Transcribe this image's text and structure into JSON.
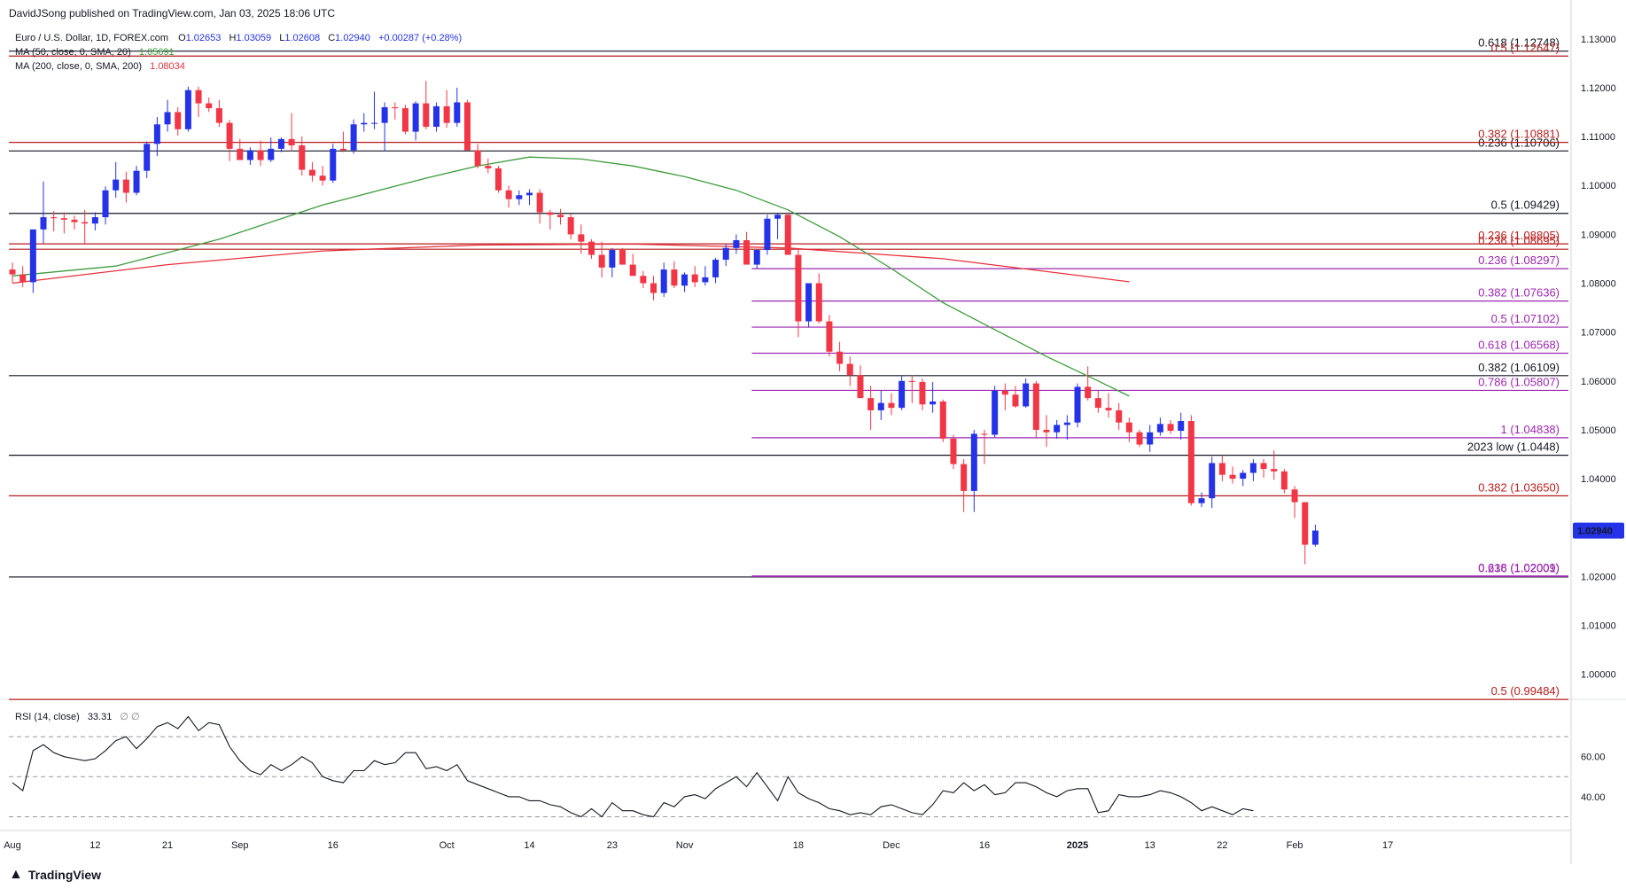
{
  "header": {
    "published_text": "DavidJSong published on TradingView.com, Jan 03, 2025 18:06 UTC"
  },
  "legend": {
    "symbol": "Euro / U.S. Dollar, 1D, FOREX.com",
    "o_label": "O",
    "o": "1.02653",
    "h_label": "H",
    "h": "1.03059",
    "l_label": "L",
    "l": "1.02608",
    "c_label": "C",
    "c": "1.02940",
    "change": "+0.00287 (+0.28%)",
    "ma50_label": "MA (50, close, 0, SMA, 20)",
    "ma50_value": "1.05691",
    "ma200_label": "MA (200, close, 0, SMA, 200)",
    "ma200_value": "1.08034",
    "rsi_label": "RSI (14, close)",
    "rsi_value": "33.31",
    "rsi_extra": "∅  ∅"
  },
  "colors": {
    "up": "#2432e8",
    "down": "#f23645",
    "ma50": "#3c9c3c",
    "ma200": "#e8303a",
    "black_level": "#131722",
    "purple_level": "#9c27b0",
    "red_level": "#b71c1c"
  },
  "price_axis": {
    "ticks": [
      "1.13000",
      "1.12000",
      "1.11000",
      "1.10000",
      "1.09000",
      "1.08000",
      "1.07000",
      "1.06000",
      "1.05000",
      "1.04000",
      "1.03000",
      "1.02000",
      "1.01000",
      "1.00000"
    ],
    "tick_values": [
      1.13,
      1.12,
      1.11,
      1.1,
      1.09,
      1.08,
      1.07,
      1.06,
      1.05,
      1.04,
      1.03,
      1.02,
      1.01,
      1.0
    ],
    "current_price": "1.02940",
    "ylim": [
      0.9965,
      1.1325
    ]
  },
  "rsi_axis": {
    "ticks": [
      "60.00",
      "40.00"
    ],
    "tick_values": [
      60,
      40
    ]
  },
  "time_axis": {
    "labels": [
      "Aug",
      "12",
      "21",
      "Sep",
      "16",
      "Oct",
      "14",
      "23",
      "Nov",
      "18",
      "Dec",
      "16",
      "2025",
      "13",
      "22",
      "Feb",
      "17"
    ],
    "label_slots": [
      0,
      8,
      15,
      22,
      31,
      42,
      50,
      58,
      65,
      76,
      85,
      94,
      103,
      110,
      117,
      124,
      133
    ]
  },
  "levels": {
    "black": [
      {
        "value": 1.12748,
        "label": "0.618 (1.12748)"
      },
      {
        "value": 1.10706,
        "label": "0.236 (1.10706)"
      },
      {
        "value": 1.09429,
        "label": "0.5 (1.09429)"
      },
      {
        "value": 1.06109,
        "label": "0.382 (1.06109)"
      },
      {
        "value": 1.0448,
        "label": "2023 low (1.0448)"
      },
      {
        "value": 1.0199,
        "label": ""
      }
    ],
    "red": [
      {
        "value": 1.12647,
        "label": "0.5 (1.12647)"
      },
      {
        "value": 1.10881,
        "label": "0.382 (1.10881)"
      },
      {
        "value": 1.08805,
        "label": "0.236 (1.08805)"
      },
      {
        "value": 1.08695,
        "label": "0.236 (1.08695)"
      },
      {
        "value": 1.0365,
        "label": "0.382 (1.03650)"
      },
      {
        "value": 0.99484,
        "label": "0.5 (0.99484)"
      }
    ],
    "purple": [
      {
        "value": 1.08297,
        "label": "0.236 (1.08297)"
      },
      {
        "value": 1.07636,
        "label": "0.382 (1.07636)"
      },
      {
        "value": 1.07102,
        "label": "0.5 (1.07102)"
      },
      {
        "value": 1.06568,
        "label": "0.618 (1.06568)"
      },
      {
        "value": 1.05807,
        "label": "0.786 (1.05807)"
      },
      {
        "value": 1.04838,
        "label": "1 (1.04838)"
      },
      {
        "value": 1.02009,
        "label": "0.618 (1.02009)"
      },
      {
        "value": 1.02001,
        "label": "0.236 (1.02001)"
      }
    ]
  },
  "chart_data": {
    "type": "candlestick",
    "title": "Euro / U.S. Dollar, 1D, FOREX.com",
    "candles_ohlc": [
      [
        1.0828,
        1.0842,
        1.0801,
        1.0818
      ],
      [
        1.0818,
        1.0835,
        1.0792,
        1.0802
      ],
      [
        1.0802,
        1.091,
        1.078,
        1.091
      ],
      [
        1.091,
        1.1008,
        1.0882,
        1.0935
      ],
      [
        1.0935,
        1.0948,
        1.0906,
        1.0933
      ],
      [
        1.0933,
        1.0945,
        1.0902,
        1.093
      ],
      [
        1.093,
        1.0938,
        1.091,
        1.0925
      ],
      [
        1.0925,
        1.095,
        1.0882,
        1.0922
      ],
      [
        1.0922,
        1.0945,
        1.0908,
        1.0935
      ],
      [
        1.0935,
        1.0998,
        1.092,
        1.099
      ],
      [
        1.099,
        1.1048,
        1.0975,
        1.1012
      ],
      [
        1.1012,
        1.1028,
        1.0965,
        1.0985
      ],
      [
        1.0985,
        1.104,
        1.098,
        1.103
      ],
      [
        1.103,
        1.109,
        1.1015,
        1.1085
      ],
      [
        1.1085,
        1.114,
        1.106,
        1.1125
      ],
      [
        1.1125,
        1.1175,
        1.111,
        1.115
      ],
      [
        1.115,
        1.116,
        1.1102,
        1.1115
      ],
      [
        1.1115,
        1.1202,
        1.111,
        1.1195
      ],
      [
        1.1195,
        1.1202,
        1.114,
        1.1168
      ],
      [
        1.1168,
        1.118,
        1.115,
        1.1158
      ],
      [
        1.1158,
        1.1175,
        1.112,
        1.1128
      ],
      [
        1.1128,
        1.1134,
        1.105,
        1.1075
      ],
      [
        1.1075,
        1.1095,
        1.1055,
        1.1052
      ],
      [
        1.1052,
        1.1078,
        1.1042,
        1.1072
      ],
      [
        1.1072,
        1.1092,
        1.104,
        1.1052
      ],
      [
        1.1052,
        1.1098,
        1.1048,
        1.1075
      ],
      [
        1.1075,
        1.1098,
        1.1068,
        1.1095
      ],
      [
        1.1095,
        1.1148,
        1.107,
        1.1082
      ],
      [
        1.1082,
        1.11,
        1.102,
        1.1032
      ],
      [
        1.1032,
        1.1048,
        1.1008,
        1.102
      ],
      [
        1.102,
        1.104,
        1.1,
        1.101
      ],
      [
        1.101,
        1.1085,
        1.1005,
        1.1075
      ],
      [
        1.1075,
        1.111,
        1.1068,
        1.1072
      ],
      [
        1.1072,
        1.1135,
        1.1065,
        1.1125
      ],
      [
        1.1125,
        1.1148,
        1.111,
        1.1128
      ],
      [
        1.1128,
        1.1192,
        1.1115,
        1.1128
      ],
      [
        1.1128,
        1.117,
        1.107,
        1.116
      ],
      [
        1.116,
        1.117,
        1.1135,
        1.1158
      ],
      [
        1.1158,
        1.1165,
        1.1105,
        1.111
      ],
      [
        1.111,
        1.1172,
        1.1092,
        1.1168
      ],
      [
        1.1168,
        1.1214,
        1.1115,
        1.112
      ],
      [
        1.112,
        1.117,
        1.111,
        1.1162
      ],
      [
        1.1162,
        1.1195,
        1.1118,
        1.1128
      ],
      [
        1.1128,
        1.12,
        1.112,
        1.117
      ],
      [
        1.117,
        1.1175,
        1.1072,
        1.1072
      ],
      [
        1.1072,
        1.1085,
        1.1035,
        1.104
      ],
      [
        1.104,
        1.1055,
        1.1025,
        1.1035
      ],
      [
        1.1035,
        1.104,
        1.0985,
        1.099
      ],
      [
        1.099,
        1.1,
        1.0955,
        1.0972
      ],
      [
        1.0972,
        1.099,
        1.096,
        1.098
      ],
      [
        1.098,
        1.0992,
        1.096,
        1.0985
      ],
      [
        1.0985,
        1.0992,
        1.0922,
        1.0945
      ],
      [
        1.0945,
        1.095,
        1.091,
        1.094
      ],
      [
        1.094,
        1.0952,
        1.092,
        1.0935
      ],
      [
        1.0935,
        1.0942,
        1.089,
        1.09
      ],
      [
        1.09,
        1.092,
        1.086,
        1.0885
      ],
      [
        1.0885,
        1.089,
        1.085,
        1.0858
      ],
      [
        1.0858,
        1.0885,
        1.0812,
        1.0832
      ],
      [
        1.0832,
        1.0872,
        1.0812,
        1.0868
      ],
      [
        1.0868,
        1.0872,
        1.084,
        1.0838
      ],
      [
        1.0838,
        1.086,
        1.0815,
        1.0815
      ],
      [
        1.0815,
        1.0825,
        1.079,
        1.08
      ],
      [
        1.08,
        1.0815,
        1.0765,
        1.078
      ],
      [
        1.078,
        1.0842,
        1.0772,
        1.0828
      ],
      [
        1.0828,
        1.0845,
        1.079,
        1.0795
      ],
      [
        1.0795,
        1.0822,
        1.0782,
        1.0818
      ],
      [
        1.0818,
        1.0835,
        1.0792,
        1.0802
      ],
      [
        1.0802,
        1.0835,
        1.0795,
        1.0812
      ],
      [
        1.0812,
        1.0852,
        1.08,
        1.0848
      ],
      [
        1.0848,
        1.088,
        1.0835,
        1.0872
      ],
      [
        1.0872,
        1.09,
        1.086,
        1.0888
      ],
      [
        1.0888,
        1.0905,
        1.086,
        1.0838
      ],
      [
        1.0838,
        1.087,
        1.083,
        1.0868
      ],
      [
        1.0868,
        1.094,
        1.0858,
        1.0932
      ],
      [
        1.0932,
        1.0942,
        1.089,
        1.094
      ],
      [
        1.094,
        1.0945,
        1.0858,
        1.0858
      ],
      [
        1.0858,
        1.087,
        1.069,
        1.0722
      ],
      [
        1.0722,
        1.08,
        1.071,
        1.08
      ],
      [
        1.08,
        1.082,
        1.0718,
        1.0722
      ],
      [
        1.0722,
        1.0735,
        1.065,
        1.066
      ],
      [
        1.066,
        1.068,
        1.062,
        1.0635
      ],
      [
        1.0635,
        1.065,
        1.059,
        1.0612
      ],
      [
        1.0612,
        1.0632,
        1.0565,
        1.0565
      ],
      [
        1.0565,
        1.059,
        1.05,
        1.054
      ],
      [
        1.054,
        1.058,
        1.052,
        1.0555
      ],
      [
        1.0555,
        1.0575,
        1.053,
        1.0545
      ],
      [
        1.0545,
        1.061,
        1.054,
        1.06
      ],
      [
        1.06,
        1.0612,
        1.0555,
        1.0598
      ],
      [
        1.0598,
        1.0605,
        1.054,
        1.0552
      ],
      [
        1.0552,
        1.0598,
        1.0535,
        1.0558
      ],
      [
        1.0558,
        1.0562,
        1.0475,
        1.0482
      ],
      [
        1.0482,
        1.049,
        1.042,
        1.043
      ],
      [
        1.043,
        1.044,
        1.0332,
        1.0375
      ],
      [
        1.0375,
        1.05,
        1.0332,
        1.0492
      ],
      [
        1.0492,
        1.05,
        1.043,
        1.049
      ],
      [
        1.049,
        1.059,
        1.0485,
        1.058
      ],
      [
        1.058,
        1.0595,
        1.054,
        1.0572
      ],
      [
        1.0572,
        1.059,
        1.0545,
        1.0548
      ],
      [
        1.0548,
        1.0605,
        1.0545,
        1.0595
      ],
      [
        1.0595,
        1.06,
        1.0485,
        1.05
      ],
      [
        1.05,
        1.053,
        1.0465,
        1.0495
      ],
      [
        1.0495,
        1.052,
        1.0482,
        1.051
      ],
      [
        1.051,
        1.053,
        1.048,
        1.0515
      ],
      [
        1.0515,
        1.0595,
        1.0505,
        1.0588
      ],
      [
        1.0588,
        1.063,
        1.056,
        1.0565
      ],
      [
        1.0565,
        1.058,
        1.0535,
        1.0545
      ],
      [
        1.0545,
        1.0575,
        1.0525,
        1.054
      ],
      [
        1.054,
        1.0555,
        1.05,
        1.0515
      ],
      [
        1.0515,
        1.0525,
        1.0475,
        1.0495
      ],
      [
        1.0495,
        1.05,
        1.0465,
        1.047
      ],
      [
        1.047,
        1.051,
        1.0455,
        1.0495
      ],
      [
        1.0495,
        1.0525,
        1.0488,
        1.0512
      ],
      [
        1.0512,
        1.052,
        1.0492,
        1.0498
      ],
      [
        1.0498,
        1.0535,
        1.048,
        1.0518
      ],
      [
        1.0518,
        1.053,
        1.0345,
        1.035
      ],
      [
        1.035,
        1.0372,
        1.0342,
        1.036
      ],
      [
        1.036,
        1.0445,
        1.034,
        1.0432
      ],
      [
        1.0432,
        1.0448,
        1.0395,
        1.0408
      ],
      [
        1.0408,
        1.0425,
        1.039,
        1.04
      ],
      [
        1.04,
        1.0418,
        1.0385,
        1.0412
      ],
      [
        1.0412,
        1.044,
        1.0395,
        1.0432
      ],
      [
        1.0432,
        1.044,
        1.0402,
        1.042
      ],
      [
        1.042,
        1.0458,
        1.0398,
        1.0415
      ],
      [
        1.0415,
        1.042,
        1.037,
        1.0378
      ],
      [
        1.0378,
        1.0385,
        1.032,
        1.0352
      ],
      [
        1.0352,
        1.0352,
        1.0225,
        1.0265
      ],
      [
        1.0265,
        1.0306,
        1.0261,
        1.0294
      ]
    ],
    "ma50": [
      [
        0,
        1.0815
      ],
      [
        10,
        1.0835
      ],
      [
        20,
        1.089
      ],
      [
        30,
        1.096
      ],
      [
        40,
        1.1015
      ],
      [
        45,
        1.104
      ],
      [
        50,
        1.1058
      ],
      [
        55,
        1.1054
      ],
      [
        60,
        1.104
      ],
      [
        65,
        1.1018
      ],
      [
        70,
        1.099
      ],
      [
        75,
        1.095
      ],
      [
        80,
        1.0895
      ],
      [
        85,
        1.083
      ],
      [
        90,
        1.076
      ],
      [
        95,
        1.0705
      ],
      [
        100,
        1.065
      ],
      [
        105,
        1.06
      ],
      [
        108,
        1.0569
      ]
    ],
    "ma200": [
      [
        0,
        1.08
      ],
      [
        15,
        1.0838
      ],
      [
        30,
        1.0866
      ],
      [
        45,
        1.0878
      ],
      [
        60,
        1.088
      ],
      [
        75,
        1.0872
      ],
      [
        90,
        1.085
      ],
      [
        108,
        1.0803
      ]
    ],
    "rsi": [
      47,
      43,
      63,
      66,
      62,
      60,
      59,
      58,
      59,
      63,
      68,
      70,
      64,
      69,
      75,
      77,
      74,
      80,
      73,
      77,
      76,
      65,
      58,
      53,
      51,
      56,
      53,
      56,
      60,
      57,
      50,
      48,
      47,
      53,
      53,
      58,
      56,
      57,
      62,
      62,
      54,
      55,
      53,
      56,
      48,
      46,
      44,
      42,
      40,
      40,
      38,
      38,
      36,
      35,
      32,
      30,
      34,
      30,
      37,
      33,
      33,
      31,
      30,
      37,
      35,
      40,
      41,
      39,
      44,
      47,
      50,
      45,
      52,
      45,
      38,
      50,
      42,
      39,
      37,
      34,
      33,
      31,
      32,
      31,
      35,
      36,
      34,
      32,
      31,
      36,
      43,
      42,
      47,
      43,
      46,
      41,
      42,
      47,
      47,
      45,
      42,
      40,
      43,
      44,
      44,
      32,
      33,
      41,
      40,
      40,
      41,
      43,
      42,
      40,
      37,
      33,
      35,
      33,
      31,
      34,
      33
    ],
    "rsi_ylim": [
      24,
      86
    ],
    "rsi_guides": [
      30,
      50,
      70
    ],
    "x_slots_total": 140
  }
}
